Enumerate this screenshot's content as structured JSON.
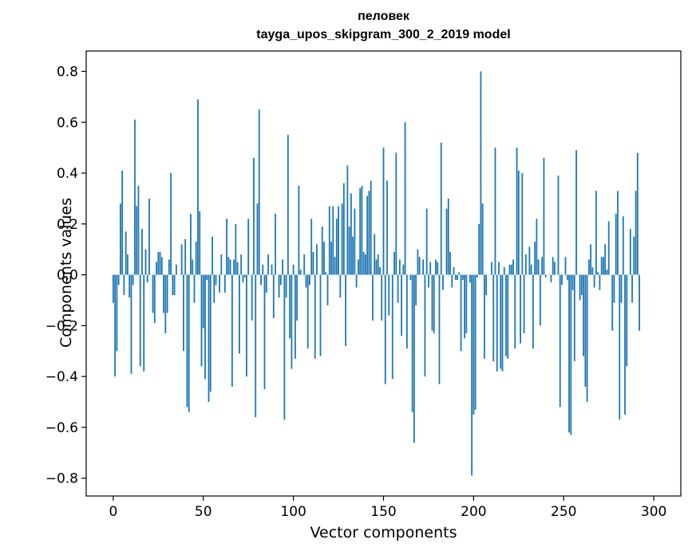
{
  "chart_data": {
    "type": "bar",
    "title_line1": "пеловек",
    "title_line2": "tayga_upos_skipgram_300_2_2019 model",
    "xlabel": "Vector components",
    "ylabel": "Components values",
    "xlim": [
      -15,
      315
    ],
    "ylim": [
      -0.87,
      0.88
    ],
    "xticks": [
      0,
      50,
      100,
      150,
      200,
      250,
      300
    ],
    "yticks": [
      -0.8,
      -0.6,
      -0.4,
      -0.2,
      0.0,
      0.2,
      0.4,
      0.6,
      0.8
    ],
    "ytick_labels": [
      "−0.8",
      "−0.6",
      "−0.4",
      "−0.2",
      "0.0",
      "0.2",
      "0.4",
      "0.6",
      "0.8"
    ],
    "bar_color": "#1f77b4",
    "values": [
      -0.11,
      -0.4,
      -0.3,
      -0.04,
      0.28,
      0.41,
      -0.08,
      0.17,
      0.08,
      -0.09,
      -0.39,
      -0.04,
      0.61,
      0.27,
      0.35,
      -0.36,
      0.18,
      -0.38,
      0.1,
      -0.03,
      0.3,
      0.0,
      -0.15,
      -0.19,
      0.05,
      0.09,
      0.09,
      0.07,
      -0.15,
      -0.23,
      -0.15,
      0.06,
      0.4,
      -0.08,
      -0.08,
      0.04,
      0.0,
      0.0,
      0.12,
      -0.3,
      0.14,
      -0.52,
      -0.54,
      0.24,
      0.06,
      -0.11,
      0.13,
      0.69,
      0.25,
      -0.36,
      -0.21,
      -0.41,
      -0.02,
      -0.5,
      -0.46,
      0.15,
      -0.11,
      -0.04,
      0.0,
      -0.07,
      0.08,
      0.0,
      -0.07,
      0.22,
      0.07,
      0.06,
      -0.44,
      0.06,
      0.2,
      0.05,
      -0.31,
      0.08,
      -0.03,
      -0.01,
      -0.4,
      0.22,
      0.0,
      -0.18,
      0.46,
      -0.56,
      0.28,
      0.65,
      -0.04,
      0.04,
      -0.45,
      -0.07,
      0.08,
      0.0,
      0.04,
      -0.17,
      0.24,
      0.0,
      -0.09,
      -0.04,
      0.06,
      -0.57,
      -0.09,
      0.55,
      -0.25,
      -0.37,
      0.04,
      -0.33,
      -0.18,
      0.35,
      0.02,
      0.0,
      0.08,
      -0.05,
      -0.29,
      -0.04,
      0.22,
      0.09,
      -0.33,
      0.12,
      0.0,
      -0.32,
      0.19,
      0.13,
      0.01,
      -0.12,
      0.27,
      0.13,
      0.27,
      0.07,
      0.22,
      0.27,
      -0.09,
      0.28,
      0.36,
      -0.28,
      0.43,
      0.19,
      0.32,
      0.15,
      0.26,
      -0.05,
      0.06,
      0.34,
      0.35,
      0.09,
      0.08,
      0.31,
      0.33,
      0.37,
      -0.18,
      0.16,
      0.06,
      0.08,
      0.03,
      -0.18,
      0.5,
      -0.43,
      0.37,
      -0.16,
      0.0,
      -0.41,
      0.09,
      0.48,
      -0.11,
      0.06,
      -0.24,
      0.04,
      0.6,
      -0.29,
      0.0,
      -0.02,
      -0.54,
      -0.66,
      -0.12,
      0.1,
      0.07,
      0.0,
      0.06,
      -0.4,
      0.26,
      -0.05,
      0.05,
      -0.22,
      -0.23,
      0.06,
      0.05,
      -0.43,
      0.52,
      -0.06,
      0.0,
      0.26,
      0.3,
      0.09,
      -0.05,
      0.03,
      -0.02,
      -0.02,
      0.01,
      -0.3,
      -0.02,
      -0.25,
      -0.23,
      0.0,
      -0.03,
      -0.79,
      -0.55,
      -0.53,
      -0.01,
      0.2,
      0.8,
      0.28,
      -0.33,
      -0.08,
      0.0,
      0.0,
      0.05,
      -0.34,
      0.5,
      -0.38,
      0.05,
      -0.37,
      -0.38,
      0.03,
      -0.32,
      -0.33,
      0.04,
      0.04,
      0.06,
      -0.29,
      0.5,
      0.41,
      -0.27,
      0.4,
      -0.23,
      0.08,
      0.0,
      0.11,
      0.04,
      -0.29,
      0.13,
      0.22,
      0.06,
      -0.2,
      0.07,
      0.46,
      -0.01,
      0.0,
      0.0,
      -0.03,
      0.07,
      0.05,
      0.0,
      0.39,
      -0.52,
      -0.04,
      0.0,
      0.07,
      -0.02,
      -0.62,
      -0.63,
      -0.06,
      -0.34,
      0.49,
      0.0,
      -0.1,
      -0.08,
      -0.32,
      -0.44,
      -0.5,
      0.06,
      0.12,
      0.03,
      -0.05,
      0.33,
      0.01,
      -0.06,
      0.07,
      0.07,
      0.12,
      0.02,
      0.21,
      0.0,
      -0.22,
      -0.11,
      0.24,
      0.33,
      -0.57,
      -0.11,
      0.23,
      -0.55,
      -0.36,
      0.0,
      0.18,
      -0.11,
      0.15,
      0.33,
      0.48,
      -0.22
    ]
  }
}
